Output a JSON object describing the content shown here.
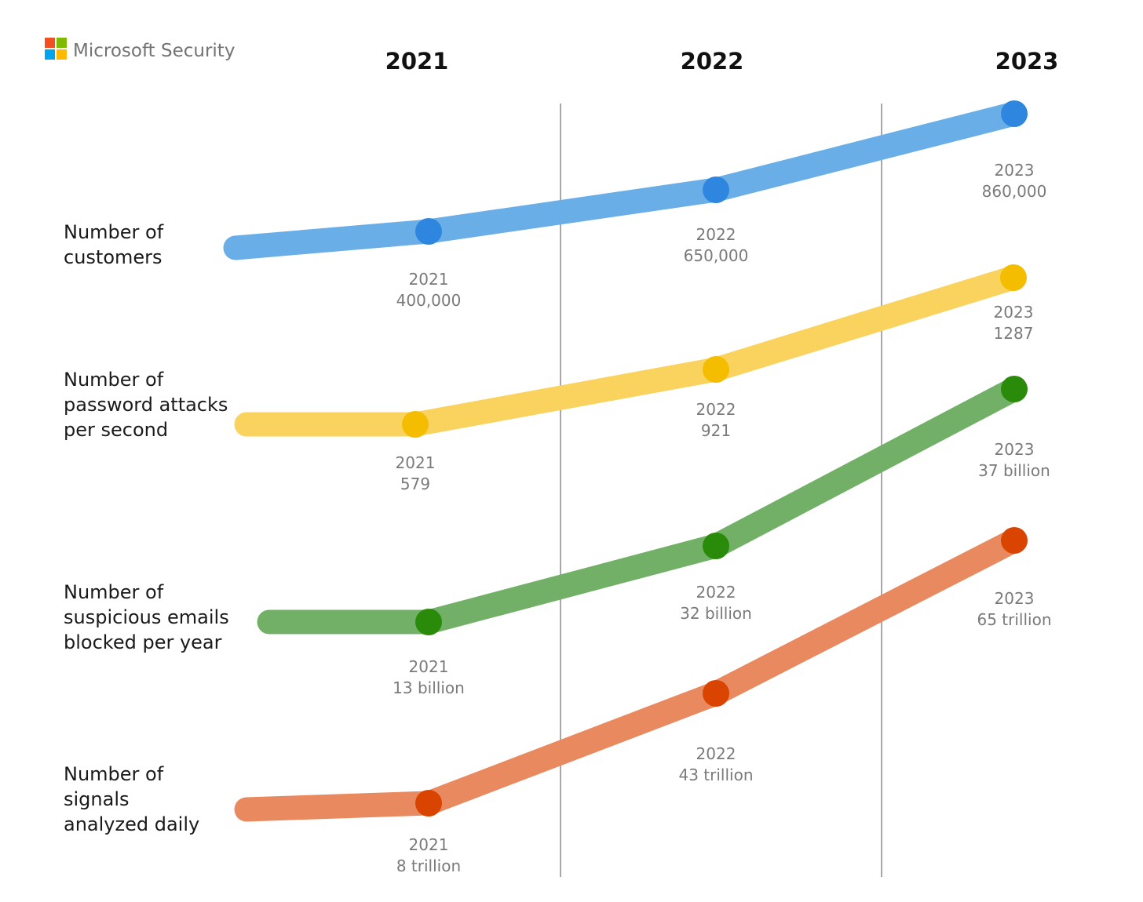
{
  "brand": {
    "name": "Microsoft Security",
    "logo_icon": "microsoft-four-square-logo",
    "logo_colors": [
      "#f25022",
      "#7fba00",
      "#00a4ef",
      "#ffb900"
    ]
  },
  "chart_data": {
    "type": "line",
    "title": "",
    "categories": [
      "2021",
      "2022",
      "2023"
    ],
    "grid": "vertical separators between years",
    "legend": "none (row labels on left)",
    "series": [
      {
        "name": "Number of customers",
        "label_lines": [
          "Number of",
          "customers"
        ],
        "color": "#6aaee8",
        "marker_color": "#2e86de",
        "points": [
          {
            "year": "2021",
            "value": 400000,
            "display": "400,000"
          },
          {
            "year": "2022",
            "value": 650000,
            "display": "650,000"
          },
          {
            "year": "2023",
            "value": 860000,
            "display": "860,000"
          }
        ]
      },
      {
        "name": "Number of password attacks per second",
        "label_lines": [
          "Number of",
          "password attacks",
          "per second"
        ],
        "color": "#f9d35e",
        "marker_color": "#f5bd00",
        "points": [
          {
            "year": "2021",
            "value": 579,
            "display": "579"
          },
          {
            "year": "2022",
            "value": 921,
            "display": "921"
          },
          {
            "year": "2023",
            "value": 1287,
            "display": "1287"
          }
        ]
      },
      {
        "name": "Number of suspicious emails blocked per year",
        "label_lines": [
          "Number of",
          "suspicious emails",
          "blocked per year"
        ],
        "color": "#72b068",
        "marker_color": "#2a8a0a",
        "points": [
          {
            "year": "2021",
            "value": 13000000000,
            "display": "13 billion"
          },
          {
            "year": "2022",
            "value": 32000000000,
            "display": "32 billion"
          },
          {
            "year": "2023",
            "value": 37000000000,
            "display": "37 billion"
          }
        ]
      },
      {
        "name": "Number of signals analyzed daily",
        "label_lines": [
          "Number of",
          "signals",
          "analyzed daily"
        ],
        "color": "#e8895f",
        "marker_color": "#d94400",
        "points": [
          {
            "year": "2021",
            "value": 8000000000000,
            "display": "8 trillion"
          },
          {
            "year": "2022",
            "value": 43000000000000,
            "display": "43 trillion"
          },
          {
            "year": "2023",
            "value": 65000000000000,
            "display": "65 trillion"
          }
        ]
      }
    ]
  }
}
